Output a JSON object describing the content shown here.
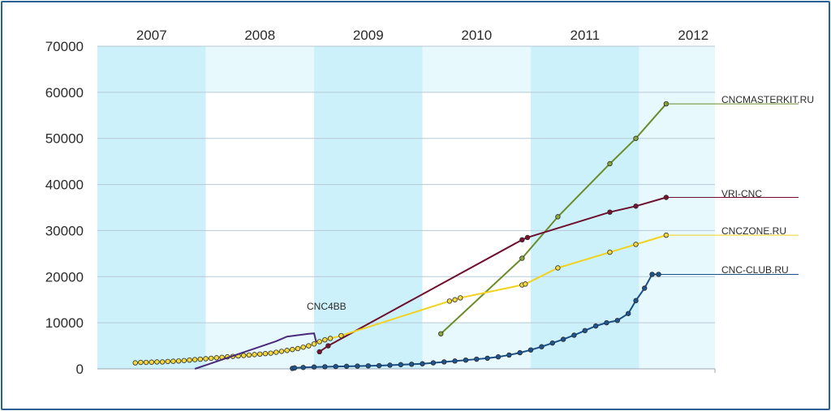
{
  "chart_data": {
    "type": "line",
    "title": "",
    "xlabel": "",
    "ylabel": "",
    "x_categories": [
      "2007",
      "2008",
      "2009",
      "2010",
      "2011",
      "2012"
    ],
    "xlim": [
      2006.5,
      2012.2
    ],
    "ylim": [
      0,
      70000
    ],
    "yticks": [
      0,
      10000,
      20000,
      30000,
      40000,
      50000,
      60000,
      70000
    ],
    "grid": true,
    "series": [
      {
        "name": "CNCMASTERKIT.RU",
        "color": "#6a8c2a",
        "marker_color": "#86a83c",
        "x": [
          2009.67,
          2010.42,
          2010.75,
          2011.23,
          2011.47,
          2011.75
        ],
        "y": [
          7600,
          24000,
          33000,
          44500,
          50000,
          57500
        ],
        "markers": true
      },
      {
        "name": "VRI-CNC",
        "color": "#6f0f2e",
        "marker_color": "#7a1330",
        "x": [
          2008.55,
          2008.63,
          2010.42,
          2010.47,
          2011.23,
          2011.47,
          2011.75
        ],
        "y": [
          3700,
          5000,
          28000,
          28500,
          34000,
          35300,
          37200
        ],
        "markers": true
      },
      {
        "name": "CNCZONE.RU",
        "color": "#f1d21d",
        "marker_color": "#f3d83e",
        "x": [
          2006.85,
          2006.9,
          2006.95,
          2007.0,
          2007.05,
          2007.1,
          2007.15,
          2007.2,
          2007.25,
          2007.3,
          2007.35,
          2007.4,
          2007.45,
          2007.5,
          2007.55,
          2007.6,
          2007.65,
          2007.7,
          2007.75,
          2007.8,
          2007.85,
          2007.9,
          2007.95,
          2008.0,
          2008.05,
          2008.1,
          2008.15,
          2008.2,
          2008.25,
          2008.3,
          2008.35,
          2008.4,
          2008.45,
          2008.5,
          2008.55,
          2008.6,
          2008.65,
          2008.75,
          2009.75,
          2009.8,
          2009.85,
          2010.42,
          2010.45,
          2010.75,
          2011.23,
          2011.47,
          2011.75
        ],
        "y": [
          1300,
          1400,
          1400,
          1450,
          1500,
          1500,
          1600,
          1650,
          1700,
          1800,
          1900,
          2000,
          2100,
          2200,
          2300,
          2400,
          2500,
          2600,
          2700,
          2800,
          2900,
          3000,
          3100,
          3200,
          3300,
          3400,
          3600,
          3800,
          4000,
          4200,
          4400,
          4700,
          5000,
          5400,
          5900,
          6300,
          6600,
          7200,
          14700,
          15000,
          15400,
          18200,
          18400,
          21900,
          25300,
          27000,
          29000
        ],
        "markers": true
      },
      {
        "name": "CNC-CLUB.RU",
        "color": "#1b4f8a",
        "marker_color": "#1d558f",
        "x": [
          2008.3,
          2008.32,
          2008.4,
          2008.5,
          2008.6,
          2008.7,
          2008.8,
          2008.9,
          2009.0,
          2009.1,
          2009.2,
          2009.3,
          2009.4,
          2009.5,
          2009.6,
          2009.7,
          2009.8,
          2009.9,
          2010.0,
          2010.1,
          2010.2,
          2010.3,
          2010.4,
          2010.5,
          2010.6,
          2010.7,
          2010.8,
          2010.9,
          2011.0,
          2011.1,
          2011.2,
          2011.3,
          2011.4,
          2011.47,
          2011.55,
          2011.62,
          2011.68
        ],
        "y": [
          100,
          200,
          300,
          400,
          450,
          500,
          550,
          600,
          650,
          700,
          800,
          900,
          1000,
          1100,
          1300,
          1500,
          1700,
          1900,
          2100,
          2300,
          2600,
          3000,
          3500,
          4100,
          4800,
          5600,
          6400,
          7300,
          8300,
          9300,
          10000,
          10500,
          12000,
          14800,
          17500,
          20500,
          20500
        ],
        "markers": true
      },
      {
        "name": "CNC4BB",
        "color": "#4b2a7a",
        "x": [
          2007.4,
          2007.8,
          2008.15,
          2008.25,
          2008.45,
          2008.5,
          2008.52
        ],
        "y": [
          0,
          3200,
          6000,
          7000,
          7600,
          7700,
          5800
        ],
        "markers": false
      }
    ],
    "labels": [
      {
        "text": "CNCMASTERKIT.RU",
        "series": "CNCMASTERKIT.RU"
      },
      {
        "text": "VRI-CNC",
        "series": "VRI-CNC"
      },
      {
        "text": "CNCZONE.RU",
        "series": "CNCZONE.RU"
      },
      {
        "text": "CNC-CLUB.RU",
        "series": "CNC-CLUB.RU"
      },
      {
        "text": "CNC4BB",
        "series": "CNC4BB"
      }
    ]
  }
}
